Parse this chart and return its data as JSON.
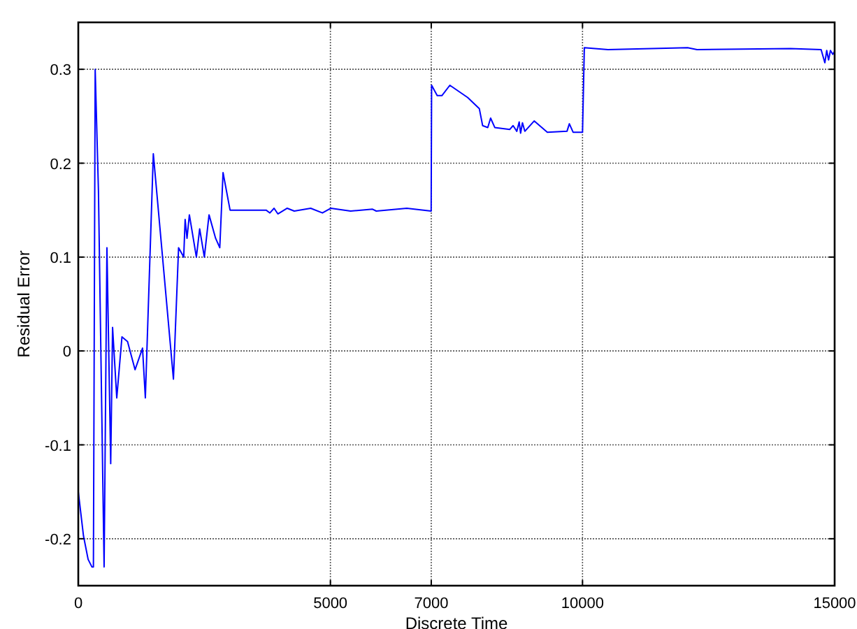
{
  "chart_data": {
    "type": "line",
    "xlabel": "Discrete Time",
    "ylabel": "Residual Error",
    "xlim": [
      0,
      15000
    ],
    "ylim": [
      -0.25,
      0.35
    ],
    "xticks": [
      0,
      5000,
      7000,
      10000,
      15000
    ],
    "yticks": [
      -0.2,
      -0.1,
      0,
      0.1,
      0.2,
      0.3
    ],
    "grid": true,
    "series": [
      {
        "color": "#0000ff",
        "x": [
          0,
          103,
          195,
          270,
          300,
          335,
          400,
          512,
          568,
          643,
          680,
          763,
          866,
          977,
          1126,
          1274,
          1330,
          1488,
          1887,
          1989,
          2091,
          2119,
          2156,
          2203,
          2342,
          2407,
          2500,
          2593,
          2723,
          2806,
          2871,
          3010,
          3725,
          3800,
          3883,
          3958,
          4144,
          4283,
          4609,
          4842,
          5010,
          5400,
          5836,
          5910,
          6515,
          6998,
          7007,
          7118,
          7211,
          7369,
          7722,
          7954,
          8019,
          8121,
          8177,
          8260,
          8558,
          8623,
          8697,
          8744,
          8772,
          8809,
          8856,
          9041,
          9302,
          9692,
          9739,
          9813,
          10000,
          10036,
          10505,
          12085,
          12270,
          14128,
          14732,
          14806,
          14843,
          14880,
          14917,
          14964,
          15000
        ],
        "values": [
          -0.15,
          -0.197,
          -0.222,
          -0.23,
          -0.23,
          0.3,
          0.17,
          -0.23,
          0.11,
          -0.12,
          0.025,
          -0.05,
          0.015,
          0.01,
          -0.02,
          0.003,
          -0.05,
          0.21,
          -0.03,
          0.11,
          0.1,
          0.14,
          0.12,
          0.145,
          0.1,
          0.13,
          0.1,
          0.145,
          0.12,
          0.11,
          0.19,
          0.15,
          0.15,
          0.147,
          0.152,
          0.146,
          0.152,
          0.149,
          0.152,
          0.147,
          0.152,
          0.149,
          0.151,
          0.149,
          0.152,
          0.149,
          0.283,
          0.272,
          0.272,
          0.283,
          0.27,
          0.258,
          0.24,
          0.238,
          0.248,
          0.238,
          0.236,
          0.24,
          0.234,
          0.244,
          0.232,
          0.243,
          0.234,
          0.245,
          0.233,
          0.234,
          0.242,
          0.233,
          0.233,
          0.323,
          0.321,
          0.323,
          0.321,
          0.322,
          0.321,
          0.307,
          0.32,
          0.31,
          0.32,
          0.316,
          0.319
        ]
      }
    ]
  }
}
